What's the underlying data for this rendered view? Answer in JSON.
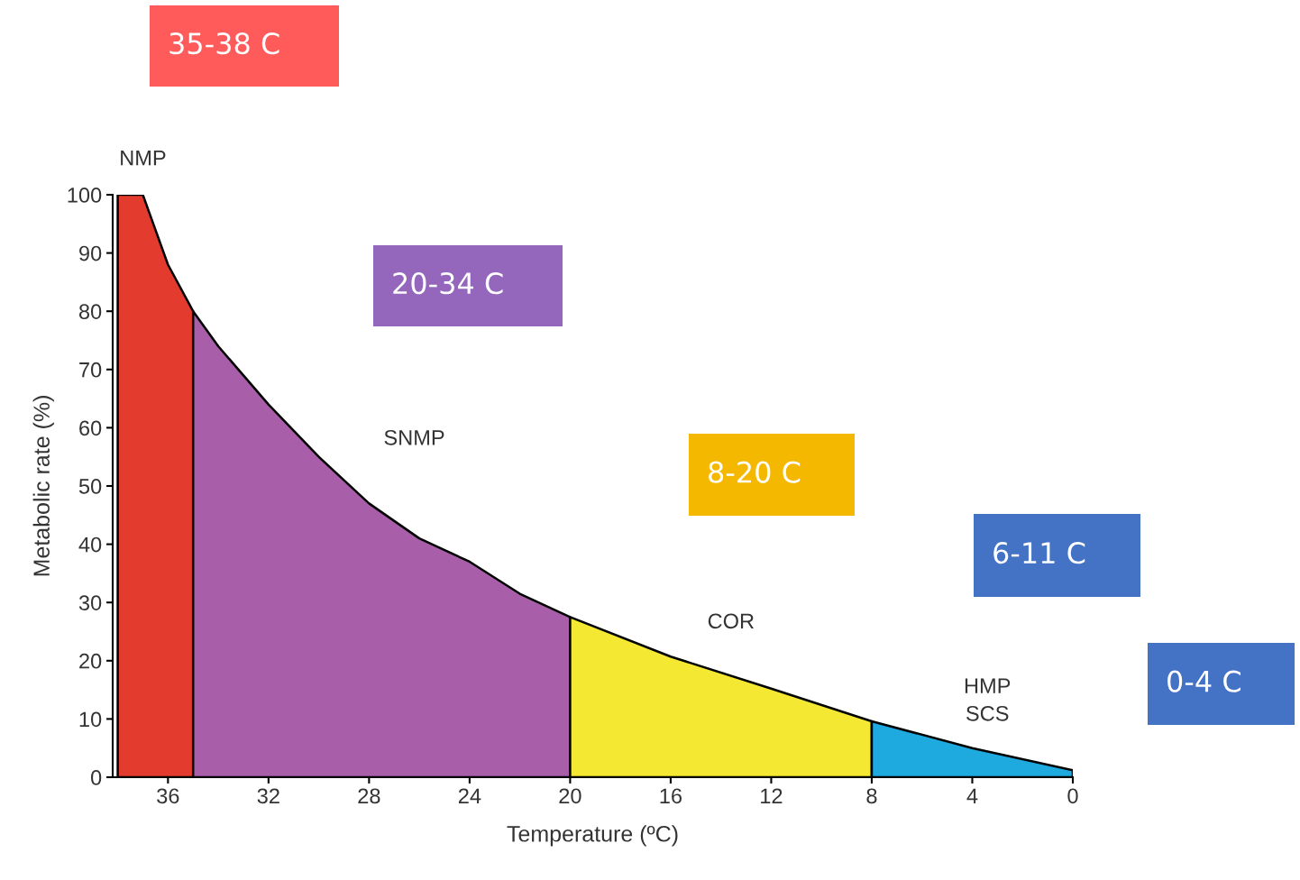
{
  "chart_data": {
    "type": "area",
    "xlabel": "Temperature (ºC)",
    "ylabel": "Metabolic rate (%)",
    "series": [
      {
        "name": "NMP",
        "color": "#e33b2e",
        "x": [
          38,
          37,
          36,
          35
        ],
        "values": [
          100,
          100,
          88,
          80
        ]
      },
      {
        "name": "SNMP",
        "color": "#a85ea8",
        "x": [
          35,
          34,
          32,
          30,
          28,
          26,
          24,
          22,
          20
        ],
        "values": [
          80,
          74,
          64,
          55,
          47,
          41,
          37,
          31.5,
          27.5
        ]
      },
      {
        "name": "COR",
        "color": "#f4e833",
        "x": [
          20,
          16,
          12,
          8
        ],
        "values": [
          27.5,
          20.7,
          15.2,
          9.6
        ]
      },
      {
        "name": "HMP\nSCS",
        "color": "#1eaadf",
        "x": [
          8,
          4,
          0
        ],
        "values": [
          9.6,
          5,
          1.2
        ]
      }
    ],
    "xlim": [
      38.2,
      0
    ],
    "xticks": [
      36,
      32,
      28,
      24,
      20,
      16,
      12,
      8,
      4,
      0
    ],
    "ylim": [
      0,
      100
    ],
    "yticks": [
      0,
      10,
      20,
      30,
      40,
      50,
      60,
      70,
      80,
      90,
      100
    ],
    "grid": false,
    "legend": false,
    "annotations": [
      "35-38 C",
      "20-34 C",
      "8-20 C",
      "6-11 C",
      "0-4 C"
    ]
  }
}
